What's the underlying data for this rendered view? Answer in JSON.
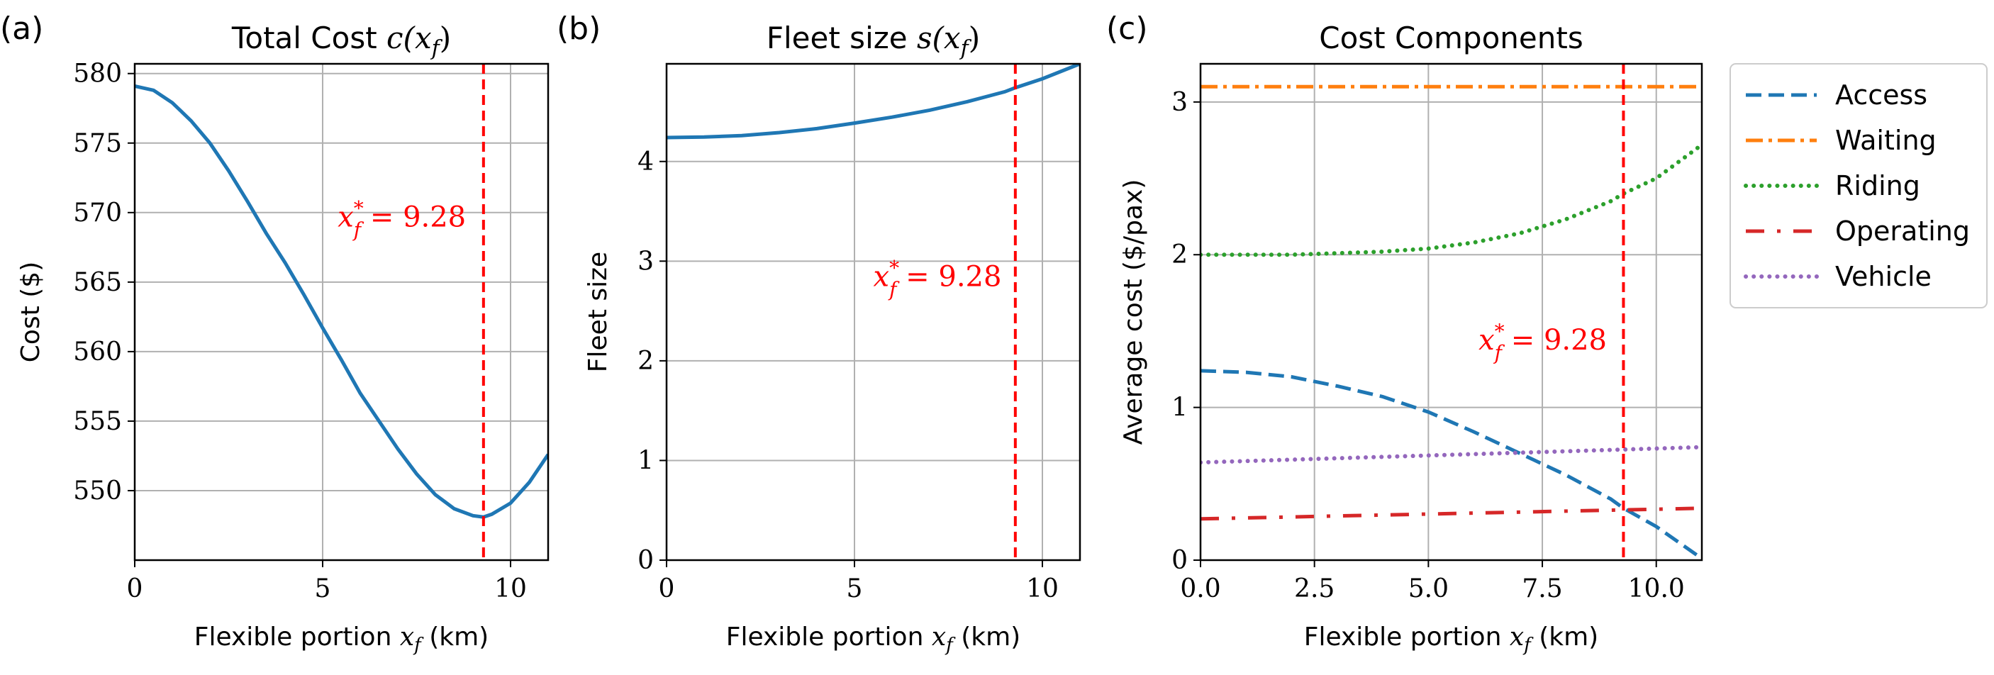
{
  "chart_data": [
    {
      "type": "line",
      "panel_label": "(a)",
      "title_text": "Total Cost ",
      "title_math": "c(x",
      "title_math_sub": "f",
      "title_math_tail": ")",
      "xlabel_text": "Flexible portion ",
      "xlabel_math": "x",
      "xlabel_math_sub": "f",
      "xlabel_tail": " (km)",
      "ylabel": "Cost ($)",
      "xlim": [
        0,
        11
      ],
      "ylim": [
        545,
        580.7
      ],
      "xticks": [
        0,
        5,
        10
      ],
      "xtick_labels": [
        "0",
        "5",
        "10"
      ],
      "yticks": [
        550,
        555,
        560,
        565,
        570,
        575,
        580
      ],
      "ytick_labels": [
        "550",
        "555",
        "560",
        "565",
        "570",
        "575",
        "580"
      ],
      "grid": true,
      "series": [
        {
          "name": "Total cost",
          "color": "#1f77b4",
          "dash": "solid",
          "x": [
            0,
            0.5,
            1,
            1.5,
            2,
            2.5,
            3,
            3.5,
            4,
            4.5,
            5,
            5.5,
            6,
            6.5,
            7,
            7.5,
            8,
            8.5,
            9,
            9.28,
            9.5,
            10,
            10.5,
            11
          ],
          "y": [
            579.1,
            578.8,
            577.9,
            576.6,
            575.0,
            573.0,
            570.8,
            568.5,
            566.4,
            564.1,
            561.7,
            559.4,
            557.0,
            555.0,
            553.0,
            551.2,
            549.7,
            548.7,
            548.2,
            548.1,
            548.3,
            549.1,
            550.6,
            552.6
          ]
        }
      ],
      "vline": {
        "x": 9.28,
        "color": "#ff0000",
        "dash": "dashed"
      },
      "annotation": {
        "base": "x",
        "sup": "*",
        "sub": "f",
        "rest": " = 9.28",
        "color": "#ff0000",
        "x": 5.4,
        "y": 569
      }
    },
    {
      "type": "line",
      "panel_label": "(b)",
      "title_text": "Fleet size ",
      "title_math": "s(x",
      "title_math_sub": "f",
      "title_math_tail": ")",
      "xlabel_text": "Flexible portion ",
      "xlabel_math": "x",
      "xlabel_math_sub": "f",
      "xlabel_tail": " (km)",
      "ylabel": "Fleet size",
      "xlim": [
        0,
        11
      ],
      "ylim": [
        0,
        4.98
      ],
      "xticks": [
        0,
        5,
        10
      ],
      "xtick_labels": [
        "0",
        "5",
        "10"
      ],
      "yticks": [
        0,
        1,
        2,
        3,
        4
      ],
      "ytick_labels": [
        "0",
        "1",
        "2",
        "3",
        "4"
      ],
      "grid": true,
      "series": [
        {
          "name": "Fleet size",
          "color": "#1f77b4",
          "dash": "solid",
          "x": [
            0,
            1,
            2,
            3,
            4,
            5,
            6,
            7,
            8,
            9,
            9.28,
            10,
            11
          ],
          "y": [
            4.24,
            4.245,
            4.26,
            4.29,
            4.33,
            4.385,
            4.445,
            4.515,
            4.6,
            4.7,
            4.74,
            4.83,
            4.98
          ]
        }
      ],
      "vline": {
        "x": 9.28,
        "color": "#ff0000",
        "dash": "dashed"
      },
      "annotation": {
        "base": "x",
        "sup": "*",
        "sub": "f",
        "rest": " = 9.28",
        "color": "#ff0000",
        "x": 5.5,
        "y": 2.75
      }
    },
    {
      "type": "line",
      "panel_label": "(c)",
      "title_text": "Cost Components",
      "title_math": "",
      "title_math_sub": "",
      "title_math_tail": "",
      "xlabel_text": "Flexible portion ",
      "xlabel_math": "x",
      "xlabel_math_sub": "f",
      "xlabel_tail": " (km)",
      "ylabel": "Average cost ($/pax)",
      "xlim": [
        0,
        11
      ],
      "ylim": [
        0,
        3.25
      ],
      "xticks": [
        0,
        2.5,
        5,
        7.5,
        10
      ],
      "xtick_labels": [
        "0.0",
        "2.5",
        "5.0",
        "7.5",
        "10.0"
      ],
      "yticks": [
        0,
        1,
        2,
        3
      ],
      "ytick_labels": [
        "0",
        "1",
        "2",
        "3"
      ],
      "grid": true,
      "series": [
        {
          "name": "Access",
          "color": "#1f77b4",
          "dash": "dashed",
          "x": [
            0,
            1,
            2,
            3,
            4,
            5,
            6,
            7,
            8,
            9,
            9.28,
            10,
            11
          ],
          "y": [
            1.24,
            1.23,
            1.2,
            1.14,
            1.07,
            0.97,
            0.84,
            0.7,
            0.56,
            0.4,
            0.34,
            0.22,
            0.01
          ]
        },
        {
          "name": "Waiting",
          "color": "#ff7f0e",
          "dash": "dashdot",
          "x": [
            0,
            11
          ],
          "y": [
            3.1,
            3.1
          ]
        },
        {
          "name": "Riding",
          "color": "#2ca02c",
          "dash": "dotted",
          "x": [
            0,
            1,
            2,
            3,
            4,
            5,
            6,
            7,
            8,
            9,
            9.28,
            10,
            11
          ],
          "y": [
            2.0,
            2.0,
            2.0,
            2.01,
            2.02,
            2.04,
            2.08,
            2.14,
            2.23,
            2.35,
            2.4,
            2.5,
            2.72
          ]
        },
        {
          "name": "Operating",
          "color": "#d62728",
          "dash": "loosedashdot",
          "x": [
            0,
            11
          ],
          "y": [
            0.27,
            0.34
          ]
        },
        {
          "name": "Vehicle",
          "color": "#9467bd",
          "dash": "dotted",
          "x": [
            0,
            11
          ],
          "y": [
            0.64,
            0.74
          ]
        }
      ],
      "vline": {
        "x": 9.28,
        "color": "#ff0000",
        "dash": "dashed"
      },
      "annotation": {
        "base": "x",
        "sup": "*",
        "sub": "f",
        "rest": " = 9.28",
        "color": "#ff0000",
        "x": 6.1,
        "y": 1.38
      },
      "legend": {
        "placement": "outside-right"
      }
    }
  ]
}
